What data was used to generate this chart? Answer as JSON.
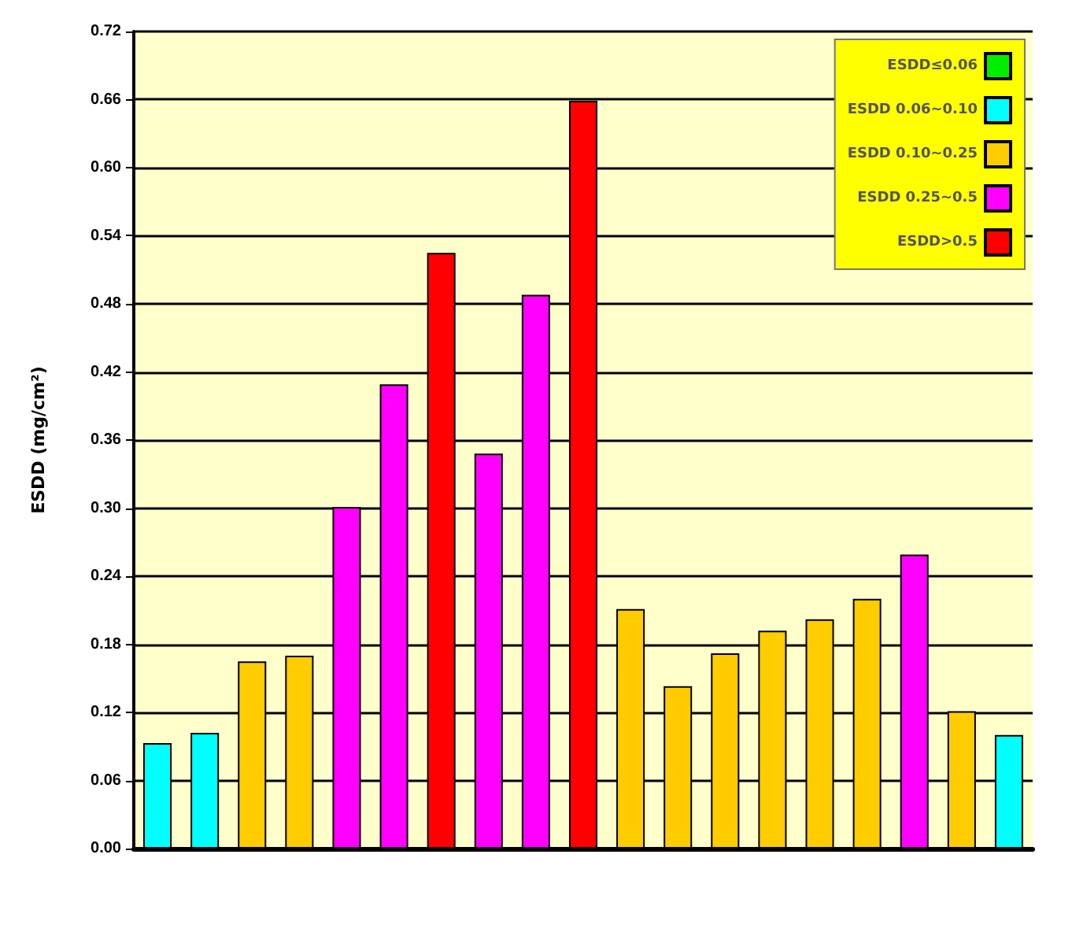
{
  "chart_data": {
    "type": "bar",
    "ylabel": "ESDD (mg/cm²)",
    "categories": [
      null,
      null,
      null,
      null,
      null,
      null,
      null,
      null,
      null,
      null,
      null,
      null,
      null,
      null,
      null,
      null,
      null,
      null,
      null
    ],
    "series": [
      {
        "name": "ESDD≤0.06",
        "color": "#00ee00",
        "values": [
          null,
          null,
          null,
          null,
          null,
          null,
          null,
          null,
          null,
          null,
          null,
          null,
          null,
          null,
          null,
          null,
          null,
          null,
          null
        ]
      },
      {
        "name": "ESDD 0.06~0.10",
        "color": "#00ffff",
        "values": [
          0.093,
          0.102,
          null,
          null,
          null,
          null,
          null,
          null,
          null,
          null,
          null,
          null,
          null,
          null,
          null,
          null,
          null,
          null,
          0.1
        ]
      },
      {
        "name": "ESDD 0.10~0.25",
        "color": "#ffcc00",
        "values": [
          null,
          null,
          0.165,
          0.17,
          null,
          null,
          null,
          null,
          null,
          null,
          0.211,
          0.143,
          0.172,
          0.192,
          0.202,
          0.22,
          null,
          0.121,
          null
        ]
      },
      {
        "name": "ESDD 0.25~0.5",
        "color": "#ff00ff",
        "values": [
          null,
          null,
          null,
          null,
          0.301,
          0.409,
          null,
          0.348,
          0.488,
          null,
          null,
          null,
          null,
          null,
          null,
          null,
          0.259,
          null,
          null
        ]
      },
      {
        "name": "ESDD>0.5",
        "color": "#ff0000",
        "values": [
          null,
          null,
          null,
          null,
          null,
          null,
          0.525,
          null,
          null,
          0.659,
          null,
          null,
          null,
          null,
          null,
          null,
          null,
          null,
          null
        ]
      }
    ],
    "stacked": true,
    "ylim": [
      0,
      0.72
    ],
    "yticks": [
      {
        "value": 0,
        "label": "0.00"
      },
      {
        "value": 0.06,
        "label": "0.06"
      },
      {
        "value": 0.12,
        "label": "0.12"
      },
      {
        "value": 0.18,
        "label": "0.18"
      },
      {
        "value": 0.24,
        "label": "0.24"
      },
      {
        "value": 0.3,
        "label": "0.30"
      },
      {
        "value": 0.36,
        "label": "0.36"
      },
      {
        "value": 0.42,
        "label": "0.42"
      },
      {
        "value": 0.48,
        "label": "0.48"
      },
      {
        "value": 0.54,
        "label": "0.54"
      },
      {
        "value": 0.6,
        "label": "0.60"
      },
      {
        "value": 0.66,
        "label": "0.66"
      },
      {
        "value": 0.72,
        "label": "0.72"
      }
    ],
    "grid": "y",
    "legend": "top right"
  }
}
